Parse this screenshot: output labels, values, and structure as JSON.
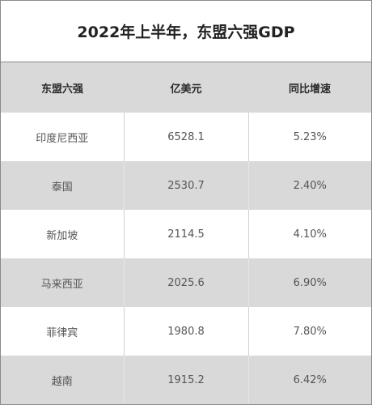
{
  "title": "2022年上半年，东盟六强GDP",
  "colors": {
    "header_bg": "#d9d9d9",
    "stripe_bg": "#d9d9d9",
    "row_bg": "#ffffff"
  },
  "chart_data": {
    "type": "table",
    "title": "2022年上半年，东盟六强GDP",
    "columns": [
      "东盟六强",
      "亿美元",
      "同比增速"
    ],
    "rows": [
      [
        "印度尼西亚",
        "6528.1",
        "5.23%"
      ],
      [
        "泰国",
        "2530.7",
        "2.40%"
      ],
      [
        "新加坡",
        "2114.5",
        "4.10%"
      ],
      [
        "马来西亚",
        "2025.6",
        "6.90%"
      ],
      [
        "菲律宾",
        "1980.8",
        "7.80%"
      ],
      [
        "越南",
        "1915.2",
        "6.42%"
      ]
    ]
  }
}
